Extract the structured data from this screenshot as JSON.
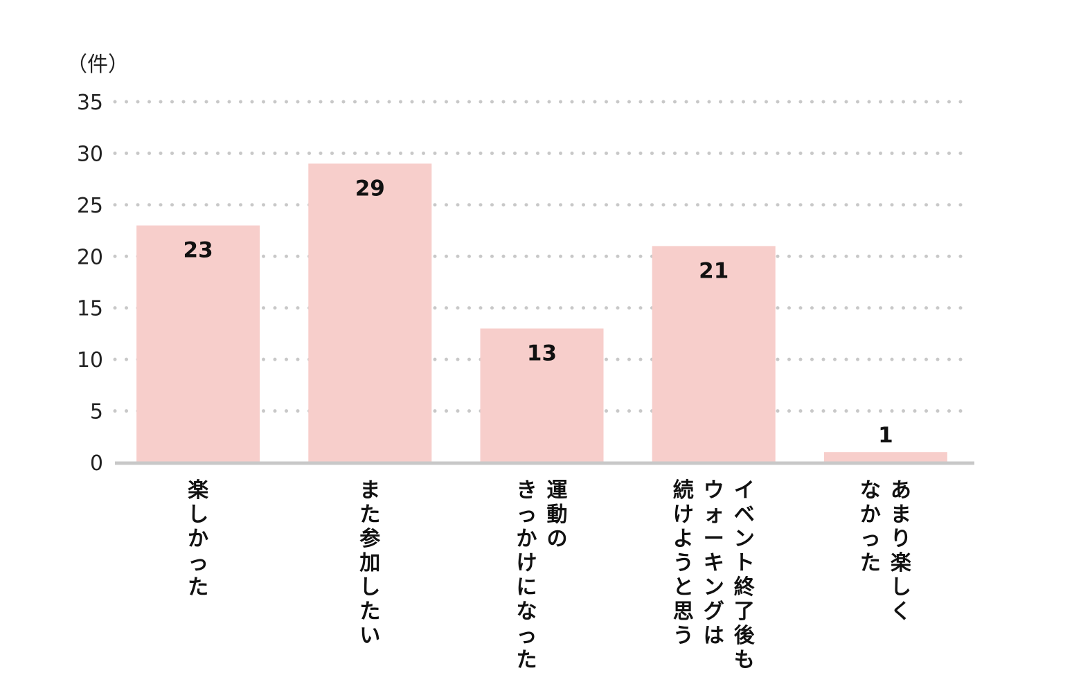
{
  "chart_data": {
    "type": "bar",
    "unit_label": "（件）",
    "categories": [
      [
        "楽しかった"
      ],
      [
        "また参加したい"
      ],
      [
        "運動の",
        "きっかけになった"
      ],
      [
        "イベント終了後も",
        "ウォーキングは",
        "続けようと思う"
      ],
      [
        "あまり楽しく",
        "なかった"
      ]
    ],
    "values": [
      23,
      29,
      13,
      21,
      1
    ],
    "ylim": [
      0,
      35
    ],
    "yticks": [
      0,
      5,
      10,
      15,
      20,
      25,
      30,
      35
    ],
    "grid": true,
    "legend": "none",
    "colors": {
      "bar": "#f7cecb",
      "grid": "#c8c8c8",
      "axis": "#c8c8c8",
      "text": "#111111"
    }
  }
}
